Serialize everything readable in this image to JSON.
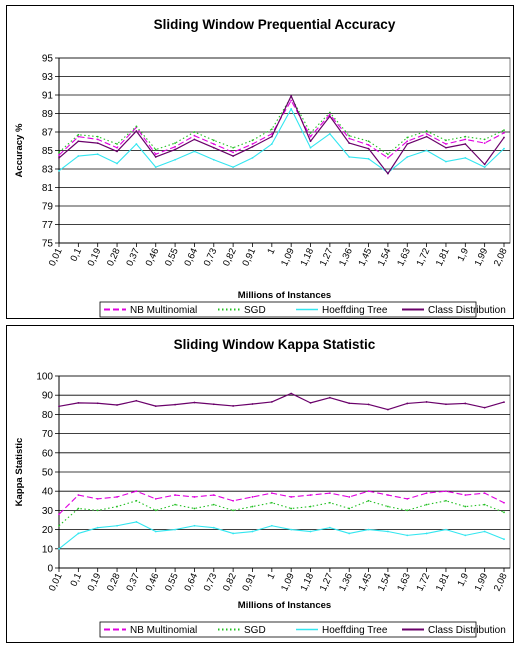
{
  "colors": {
    "nb": "#e000e0",
    "sgd": "#22c022",
    "ht": "#33e6f0",
    "class": "#6a006a"
  },
  "chart_data": [
    {
      "type": "line",
      "title": "Sliding Window Prequential Accuracy",
      "xlabel": "Millions of Instances",
      "ylabel": "Accuracy %",
      "ylim": [
        75,
        95
      ],
      "yticks": [
        75,
        77,
        79,
        81,
        83,
        85,
        87,
        89,
        91,
        93,
        95
      ],
      "x": [
        0.01,
        0.1,
        0.19,
        0.28,
        0.37,
        0.46,
        0.55,
        0.64,
        0.73,
        0.82,
        0.91,
        1,
        1.09,
        1.18,
        1.27,
        1.36,
        1.45,
        1.54,
        1.63,
        1.72,
        1.81,
        1.9,
        1.99,
        2.08
      ],
      "xticklabels": [
        "0,01",
        "0,1",
        "0,19",
        "0,28",
        "0,37",
        "0,46",
        "0,55",
        "0,64",
        "0,73",
        "0,82",
        "0,91",
        "1",
        "1,09",
        "1,18",
        "1,27",
        "1,36",
        "1,45",
        "1,54",
        "1,63",
        "1,72",
        "1,81",
        "1,9",
        "1,99",
        "2,08"
      ],
      "grid": true,
      "legend_position": "bottom",
      "series": [
        {
          "name": "NB Multinomial",
          "style": "dash",
          "values": [
            84.5,
            86.5,
            86.2,
            85.3,
            87.5,
            84.6,
            85.4,
            86.6,
            85.7,
            84.8,
            85.7,
            86.8,
            90.4,
            86.5,
            88.9,
            86.3,
            85.6,
            84.2,
            86.0,
            86.8,
            85.7,
            86.2,
            85.8,
            86.9
          ]
        },
        {
          "name": "SGD",
          "style": "dot",
          "values": [
            84.8,
            86.7,
            86.5,
            85.7,
            87.6,
            85.1,
            85.8,
            87.0,
            86.1,
            85.3,
            86.1,
            87.3,
            90.8,
            86.9,
            89.1,
            86.6,
            86.0,
            84.6,
            86.4,
            87.1,
            86.1,
            86.5,
            86.2,
            87.2
          ]
        },
        {
          "name": "Hoeffding Tree",
          "style": "solid",
          "values": [
            82.8,
            84.4,
            84.6,
            83.6,
            85.7,
            83.2,
            84.0,
            84.9,
            84.0,
            83.2,
            84.2,
            85.7,
            89.5,
            85.3,
            86.8,
            84.3,
            84.1,
            82.6,
            84.3,
            85.0,
            83.8,
            84.2,
            83.2,
            85.2
          ]
        },
        {
          "name": "Class Distribution",
          "style": "solid",
          "values": [
            84.2,
            86.0,
            85.8,
            84.9,
            87.1,
            84.3,
            85.1,
            86.2,
            85.3,
            84.4,
            85.4,
            86.5,
            90.9,
            86.0,
            88.7,
            85.8,
            85.2,
            82.5,
            85.7,
            86.5,
            85.3,
            85.7,
            83.5,
            86.4
          ]
        }
      ]
    },
    {
      "type": "line",
      "title": "Sliding Window Kappa Statistic",
      "xlabel": "Millions of Instances",
      "ylabel": "Kappa Statistic",
      "ylim": [
        0,
        100
      ],
      "yticks": [
        0,
        10,
        20,
        30,
        40,
        50,
        60,
        70,
        80,
        90,
        100
      ],
      "x": [
        0.01,
        0.1,
        0.19,
        0.28,
        0.37,
        0.46,
        0.55,
        0.64,
        0.73,
        0.82,
        0.91,
        1,
        1.09,
        1.18,
        1.27,
        1.36,
        1.45,
        1.54,
        1.63,
        1.72,
        1.81,
        1.9,
        1.99,
        2.08
      ],
      "xticklabels": [
        "0,01",
        "0,1",
        "0,19",
        "0,28",
        "0,37",
        "0,46",
        "0,55",
        "0,64",
        "0,73",
        "0,82",
        "0,91",
        "1",
        "1,09",
        "1,18",
        "1,27",
        "1,36",
        "1,45",
        "1,54",
        "1,63",
        "1,72",
        "1,81",
        "1,9",
        "1,99",
        "2,08"
      ],
      "grid": true,
      "legend_position": "bottom",
      "series": [
        {
          "name": "NB Multinomial",
          "style": "dash",
          "values": [
            28,
            38,
            36,
            37,
            40,
            36,
            38,
            37,
            38,
            35,
            37,
            39,
            37,
            38,
            39,
            37,
            40,
            38,
            36,
            39,
            40,
            38,
            39,
            34
          ]
        },
        {
          "name": "SGD",
          "style": "dot",
          "values": [
            22,
            31,
            30,
            32,
            35,
            30,
            33,
            31,
            33,
            30,
            32,
            34,
            31,
            32,
            34,
            31,
            35,
            32,
            30,
            33,
            35,
            32,
            33,
            29
          ]
        },
        {
          "name": "Hoeffding Tree",
          "style": "solid",
          "values": [
            10,
            18,
            21,
            22,
            24,
            19,
            20,
            22,
            21,
            18,
            19,
            22,
            20,
            19,
            21,
            18,
            20,
            19,
            17,
            18,
            20,
            17,
            19,
            15
          ]
        },
        {
          "name": "Class Distribution",
          "style": "solid",
          "values": [
            84.2,
            86.0,
            85.8,
            84.9,
            87.1,
            84.3,
            85.1,
            86.2,
            85.3,
            84.4,
            85.4,
            86.5,
            90.9,
            86.0,
            88.7,
            85.8,
            85.2,
            82.5,
            85.7,
            86.5,
            85.3,
            85.7,
            83.5,
            86.4
          ]
        }
      ]
    }
  ]
}
